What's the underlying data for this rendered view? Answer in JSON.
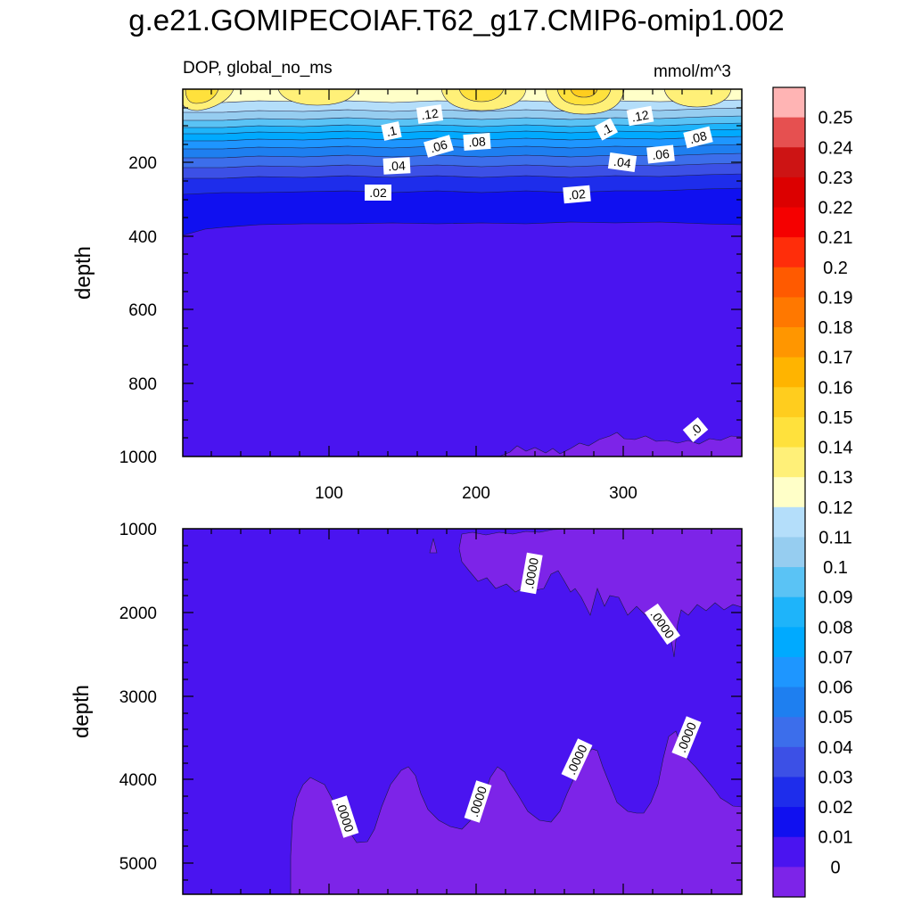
{
  "title": "g.e21.GOMIPECOIAF.T62_g17.CMIP6-omip1.002",
  "chart_data": [
    {
      "type": "heatmap",
      "panel": "upper",
      "subtitle_left": "DOP, global_no_ms",
      "subtitle_right": "mmol/m^3",
      "xlabel": "",
      "ylabel": "depth",
      "xlim": [
        0,
        380
      ],
      "ylim": [
        1000,
        0
      ],
      "xticks": [
        "100",
        "200",
        "300"
      ],
      "yticks": [
        "200",
        "400",
        "600",
        "800",
        "1000"
      ],
      "contour_labels": [
        {
          "text": ".12",
          "x": 170,
          "depth": 65
        },
        {
          "text": ".12",
          "x": 315,
          "depth": 72
        },
        {
          "text": ".1",
          "x": 142,
          "depth": 115
        },
        {
          "text": ".1",
          "x": 290,
          "depth": 112
        },
        {
          "text": ".08",
          "x": 190,
          "depth": 160
        },
        {
          "text": ".08",
          "x": 355,
          "depth": 152
        },
        {
          "text": ".06",
          "x": 162,
          "depth": 165
        },
        {
          "text": ".06",
          "x": 325,
          "depth": 178
        },
        {
          "text": ".04",
          "x": 147,
          "depth": 205
        },
        {
          "text": ".04",
          "x": 302,
          "depth": 195
        },
        {
          "text": ".02",
          "x": 132,
          "depth": 280
        },
        {
          "text": ".02",
          "x": 270,
          "depth": 285
        },
        {
          "text": ".0",
          "x": 350,
          "depth": 925
        }
      ],
      "description_levels": "concentration decreases with depth from about 0.15 near the surface to 0 below roughly 380 m"
    },
    {
      "type": "heatmap",
      "panel": "lower",
      "xlabel": "",
      "ylabel": "depth",
      "xlim": [
        0,
        380
      ],
      "ylim": [
        5350,
        1000
      ],
      "xticks": [],
      "yticks": [
        "1000",
        "2000",
        "3000",
        "4000",
        "5000"
      ],
      "contour_labels": [
        {
          "text": ".0000",
          "x": 237,
          "depth": 1600
        },
        {
          "text": ".0000",
          "x": 330,
          "depth": 2150
        },
        {
          "text": ".0000",
          "x": 112,
          "depth": 4350
        },
        {
          "text": ".0000",
          "x": 220,
          "depth": 4300
        },
        {
          "text": ".0000",
          "x": 266,
          "depth": 3900
        },
        {
          "text": ".0000",
          "x": 345,
          "depth": 3550
        }
      ]
    }
  ],
  "colorbar": {
    "labels": [
      "0.25",
      "0.24",
      "0.23",
      "0.22",
      "0.21",
      "0.2",
      "0.19",
      "0.18",
      "0.17",
      "0.16",
      "0.15",
      "0.14",
      "0.13",
      "0.12",
      "0.11",
      "0.1",
      "0.09",
      "0.08",
      "0.07",
      "0.06",
      "0.05",
      "0.04",
      "0.03",
      "0.02",
      "0.01",
      "0"
    ],
    "colors": [
      "#ffb4b4",
      "#e65050",
      "#cd1414",
      "#dc0000",
      "#f50000",
      "#ff2d0a",
      "#ff5a00",
      "#ff7800",
      "#ff9600",
      "#ffb400",
      "#ffcd1e",
      "#ffe13c",
      "#fff078",
      "#ffffc8",
      "#b4defa",
      "#96cdf0",
      "#5ac3f5",
      "#1eb4fa",
      "#00aaff",
      "#1e96ff",
      "#1e7ff0",
      "#3c6eeb",
      "#3c50e6",
      "#1e2deb",
      "#1010f0",
      "#4a14f0",
      "#7d24e8"
    ]
  },
  "colors": {
    "zero_fill": "#4a14f0",
    "below_zero_fill": "#7d24e8"
  }
}
